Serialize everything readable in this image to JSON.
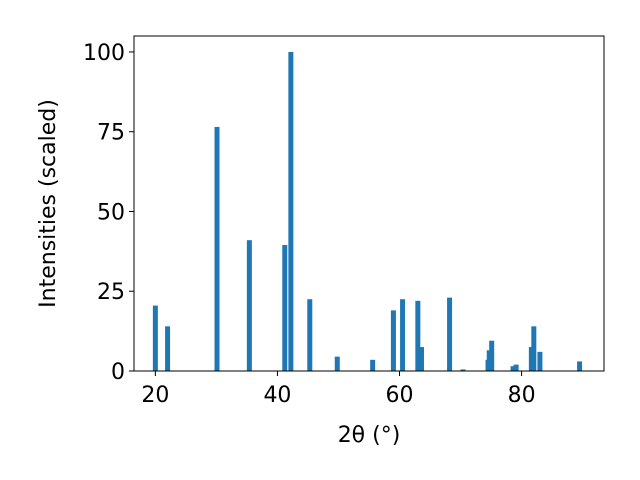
{
  "chart_data": {
    "type": "bar",
    "xlabel": "2θ (°)",
    "ylabel": "Intensities (scaled)",
    "xlim": [
      16.5,
      93.5
    ],
    "ylim": [
      0,
      105
    ],
    "x_ticks": [
      "20",
      "40",
      "60",
      "80"
    ],
    "y_ticks": [
      "0",
      "25",
      "50",
      "75",
      "100"
    ],
    "bar_color": "#1f77b4",
    "grid": false,
    "legend": "none",
    "x": [
      20.0,
      22.0,
      30.1,
      35.4,
      41.2,
      42.2,
      45.3,
      49.8,
      55.6,
      59.0,
      60.5,
      63.0,
      63.6,
      68.2,
      70.4,
      74.5,
      74.7,
      75.1,
      78.6,
      79.1,
      81.6,
      82.0,
      83.0,
      89.5
    ],
    "values": [
      20.5,
      14.0,
      76.5,
      41.0,
      39.5,
      100.0,
      22.5,
      4.5,
      3.5,
      19.0,
      22.5,
      22.0,
      7.5,
      23.0,
      0.5,
      3.5,
      6.5,
      9.5,
      1.5,
      2.0,
      7.5,
      14.0,
      6.0,
      3.0
    ]
  }
}
